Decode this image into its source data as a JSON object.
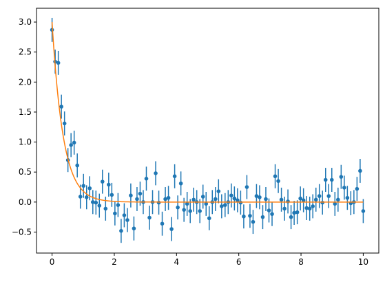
{
  "chart_data": {
    "type": "scatter",
    "title": "",
    "xlabel": "",
    "ylabel": "",
    "xlim": [
      -0.5,
      10.5
    ],
    "ylim": [
      -0.85,
      3.23
    ],
    "grid": false,
    "legend": "none",
    "x_ticks": [
      0,
      2,
      4,
      6,
      8,
      10
    ],
    "x_tick_labels": [
      "0",
      "2",
      "4",
      "6",
      "8",
      "10"
    ],
    "y_ticks": [
      -0.5,
      0.0,
      0.5,
      1.0,
      1.5,
      2.0,
      2.5,
      3.0
    ],
    "y_tick_labels": [
      "−0.5",
      "0.0",
      "0.5",
      "1.0",
      "1.5",
      "2.0",
      "2.5",
      "3.0"
    ],
    "error": 0.2,
    "series": [
      {
        "kind": "errorbar",
        "color": "#1f77b4",
        "x": [
          0.0,
          0.1,
          0.2,
          0.3,
          0.4,
          0.51,
          0.61,
          0.71,
          0.81,
          0.91,
          1.01,
          1.11,
          1.21,
          1.31,
          1.41,
          1.52,
          1.62,
          1.72,
          1.82,
          1.92,
          2.02,
          2.12,
          2.22,
          2.32,
          2.42,
          2.53,
          2.63,
          2.73,
          2.83,
          2.93,
          3.03,
          3.13,
          3.23,
          3.33,
          3.43,
          3.54,
          3.64,
          3.74,
          3.84,
          3.94,
          4.04,
          4.14,
          4.24,
          4.34,
          4.44,
          4.55,
          4.65,
          4.75,
          4.85,
          4.95,
          5.05,
          5.15,
          5.25,
          5.35,
          5.45,
          5.56,
          5.66,
          5.76,
          5.86,
          5.96,
          6.06,
          6.16,
          6.26,
          6.36,
          6.46,
          6.57,
          6.67,
          6.77,
          6.87,
          6.97,
          7.07,
          7.17,
          7.27,
          7.37,
          7.47,
          7.58,
          7.68,
          7.78,
          7.88,
          7.98,
          8.08,
          8.18,
          8.28,
          8.38,
          8.48,
          8.59,
          8.69,
          8.79,
          8.89,
          8.99,
          9.09,
          9.19,
          9.29,
          9.39,
          9.49,
          9.6,
          9.7,
          9.8,
          9.9,
          10.0
        ],
        "y": [
          2.87,
          2.34,
          2.32,
          1.59,
          1.31,
          0.7,
          0.95,
          0.99,
          0.61,
          0.09,
          0.27,
          0.08,
          0.23,
          0.0,
          -0.01,
          -0.06,
          0.34,
          -0.11,
          0.29,
          0.12,
          -0.19,
          -0.05,
          -0.48,
          -0.22,
          -0.3,
          0.11,
          -0.44,
          0.05,
          0.14,
          0.0,
          0.39,
          -0.26,
          0.0,
          0.48,
          -0.01,
          -0.36,
          0.05,
          0.07,
          -0.45,
          0.43,
          -0.09,
          0.31,
          -0.13,
          -0.03,
          -0.15,
          0.04,
          0.0,
          -0.15,
          0.09,
          -0.03,
          -0.27,
          0.0,
          0.05,
          0.18,
          -0.07,
          -0.05,
          0.0,
          0.11,
          0.06,
          0.03,
          -0.01,
          -0.24,
          0.25,
          -0.23,
          -0.33,
          0.1,
          0.08,
          -0.25,
          0.05,
          -0.14,
          -0.2,
          0.43,
          0.35,
          0.04,
          -0.11,
          0.01,
          -0.25,
          -0.18,
          -0.17,
          0.06,
          0.03,
          -0.1,
          -0.11,
          -0.07,
          0.04,
          0.1,
          -0.01,
          0.37,
          0.1,
          0.37,
          -0.03,
          0.04,
          0.42,
          0.24,
          0.07,
          -0.02,
          0.0,
          0.22,
          0.52,
          -0.15
        ]
      },
      {
        "kind": "line",
        "color": "#ff7f0e",
        "model": "y = 3.0 * exp(-2.8 * x)",
        "amplitude": 3.0,
        "rate": 2.8
      }
    ]
  }
}
